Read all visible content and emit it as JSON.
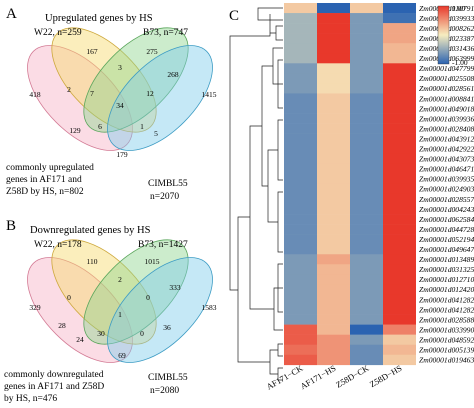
{
  "panel_a": {
    "letter": "A",
    "title": "Upregulated genes by HS",
    "w22": "W22, n=259",
    "b73": "B73, n=747",
    "cimbl_name": "CIMBL55",
    "cimbl_n": "n=2070",
    "common_l1": "commonly upregulated",
    "common_l2": "genes in AF171 and",
    "common_l3": "Z58D  by HS, n=802",
    "counts": {
      "c167": "167",
      "c275": "275",
      "c418": "418",
      "c1415": "1415",
      "c2": "2",
      "c3": "3",
      "c268": "268",
      "c34": "34",
      "c7": "7",
      "c12": "12",
      "c129": "129",
      "c6": "6",
      "c1": "1",
      "c5": "5",
      "c179": "179"
    }
  },
  "panel_b": {
    "letter": "B",
    "title": "Downregulated genes by HS",
    "w22": "W22, n=178",
    "b73": "B73, n=1427",
    "cimbl_name": "CIMBL55",
    "cimbl_n": "n=2080",
    "common_l1": "commonly downregulated",
    "common_l2": "genes in AF171 and Z58D",
    "common_l3": "by HS, n=476",
    "counts": {
      "c110": "110",
      "c1015": "1015",
      "c329": "329",
      "c1583": "1583",
      "c2": "2",
      "c333": "333",
      "c0a": "0",
      "c0b": "0",
      "c1": "1",
      "c28": "28",
      "c24": "24",
      "c36": "36",
      "c30": "30",
      "c0c": "0",
      "c69": "69"
    }
  },
  "panel_c": {
    "letter": "C",
    "legend_max": "1.00",
    "legend_min": "-1.00",
    "columns": [
      "AF171−CK",
      "AF171−HS",
      "Z58D−CK",
      "Z58D−HS"
    ],
    "genes": [
      "Zm00001d010791",
      "Zm00001d039933",
      "Zm00001d008262",
      "Zm00001d023387",
      "Zm00001d031436",
      "Zm00001d063999",
      "Zm00001d047799",
      "Zm00001d025508",
      "Zm00001d028561",
      "Zm00001d008841",
      "Zm00001d049018",
      "Zm00001d039936",
      "Zm00001d028408",
      "Zm00001d043912",
      "Zm00001d042922",
      "Zm00001d043073",
      "Zm00001d046471",
      "Zm00001d039935",
      "Zm00001d024903",
      "Zm00001d028557",
      "Zm00001d004243",
      "Zm00001d062584",
      "Zm00001d044728",
      "Zm00001d052194",
      "Zm00001d049647",
      "Zm00001d013489",
      "Zm00001d031325",
      "Zm00001d012710",
      "Zm00001d012420",
      "Zm00001d041282",
      "Zm00001d041282",
      "Zm00001d028588",
      "Zm00001d033990",
      "Zm00001d048592",
      "Zm00001d005139",
      "Zm00001d019463"
    ],
    "values": [
      [
        0.2,
        -1.0,
        0.2,
        -1.0
      ],
      [
        -0.4,
        1.0,
        -0.6,
        -0.9
      ],
      [
        -0.4,
        1.0,
        -0.6,
        0.4
      ],
      [
        -0.4,
        1.0,
        -0.6,
        0.4
      ],
      [
        -0.4,
        1.0,
        -0.6,
        0.3
      ],
      [
        -0.4,
        1.0,
        -0.6,
        0.3
      ],
      [
        -0.6,
        0.1,
        -0.6,
        1.0
      ],
      [
        -0.6,
        0.1,
        -0.6,
        1.0
      ],
      [
        -0.6,
        0.1,
        -0.6,
        1.0
      ],
      [
        -0.7,
        0.2,
        -0.7,
        1.0
      ],
      [
        -0.7,
        0.2,
        -0.7,
        1.0
      ],
      [
        -0.7,
        0.2,
        -0.7,
        1.0
      ],
      [
        -0.7,
        0.2,
        -0.7,
        1.0
      ],
      [
        -0.7,
        0.2,
        -0.7,
        1.0
      ],
      [
        -0.7,
        0.2,
        -0.7,
        1.0
      ],
      [
        -0.7,
        0.2,
        -0.7,
        1.0
      ],
      [
        -0.7,
        0.2,
        -0.7,
        1.0
      ],
      [
        -0.7,
        0.2,
        -0.7,
        1.0
      ],
      [
        -0.7,
        0.2,
        -0.7,
        1.0
      ],
      [
        -0.7,
        0.2,
        -0.7,
        1.0
      ],
      [
        -0.7,
        0.2,
        -0.7,
        1.0
      ],
      [
        -0.7,
        0.2,
        -0.7,
        1.0
      ],
      [
        -0.7,
        0.2,
        -0.7,
        1.0
      ],
      [
        -0.7,
        0.2,
        -0.7,
        1.0
      ],
      [
        -0.7,
        0.2,
        -0.7,
        1.0
      ],
      [
        -0.6,
        0.4,
        -0.6,
        1.0
      ],
      [
        -0.6,
        0.3,
        -0.6,
        1.0
      ],
      [
        -0.6,
        0.3,
        -0.6,
        1.0
      ],
      [
        -0.6,
        0.3,
        -0.6,
        1.0
      ],
      [
        -0.6,
        0.3,
        -0.6,
        1.0
      ],
      [
        -0.6,
        0.3,
        -0.6,
        1.0
      ],
      [
        -0.6,
        0.3,
        -0.6,
        1.0
      ],
      [
        0.8,
        0.3,
        -1.0,
        0.6
      ],
      [
        0.8,
        0.5,
        -0.6,
        0.2
      ],
      [
        0.7,
        0.5,
        -0.7,
        0.3
      ],
      [
        0.8,
        0.5,
        -0.7,
        0.2
      ]
    ],
    "colors": {
      "low": "#2b63b1",
      "mid": "#f6edc0",
      "high": "#e8382b"
    }
  }
}
